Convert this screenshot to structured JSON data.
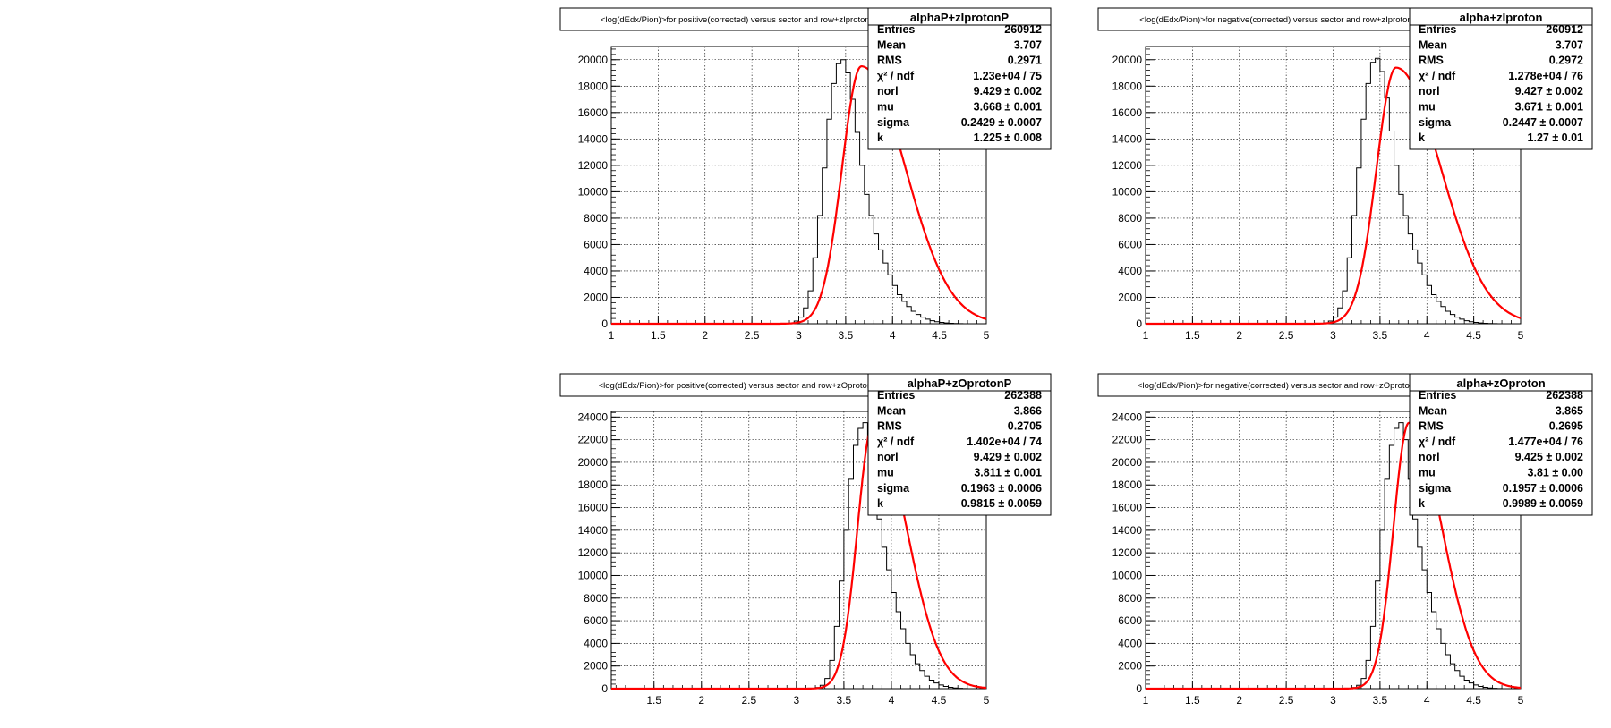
{
  "chart_data": [
    {
      "type": "bar",
      "title": "<log(dEdx/Pion)>for positive(corrected) versus sector and row+zIprotonP",
      "xlim": [
        1,
        5
      ],
      "ylim": [
        0,
        21000
      ],
      "x_ticks": [
        "1",
        "1.5",
        "2",
        "2.5",
        "3",
        "3.5",
        "4",
        "4.5",
        "5"
      ],
      "y_ticks": [
        "0",
        "2000",
        "4000",
        "6000",
        "8000",
        "10000",
        "12000",
        "14000",
        "16000",
        "18000",
        "20000"
      ],
      "grid": true,
      "histogram": {
        "x_start": 2.95,
        "bin_width": 0.05,
        "values": [
          200,
          500,
          1200,
          2500,
          5000,
          8200,
          11800,
          15500,
          18200,
          19700,
          20000,
          19000,
          17000,
          14500,
          12000,
          9800,
          8200,
          6800,
          5600,
          4600,
          3700,
          2900,
          2200,
          1700,
          1300,
          950,
          700,
          500,
          350,
          230,
          150,
          100,
          60,
          30,
          15,
          5,
          0,
          0,
          0,
          0,
          0,
          0
        ]
      },
      "fit": {
        "name": "red fit curve",
        "norl": 9.429,
        "mu": 3.668,
        "sigma": 0.2429,
        "k": 1.225,
        "peak": 19500
      },
      "stats": {
        "name": "alphaP+zIprotonP",
        "rows": [
          {
            "label": "Entries",
            "value": "260912"
          },
          {
            "label": "Mean",
            "value": "3.707"
          },
          {
            "label": "RMS",
            "value": "0.2971"
          },
          {
            "label": "χ² / ndf",
            "value": "1.23e+04 / 75"
          },
          {
            "label": "norl",
            "value": "9.429 ± 0.002"
          },
          {
            "label": "mu",
            "value": "3.668 ± 0.001"
          },
          {
            "label": "sigma",
            "value": "0.2429 ± 0.0007"
          },
          {
            "label": "k",
            "value": "1.225 ± 0.008"
          }
        ]
      }
    },
    {
      "type": "bar",
      "title": "<log(dEdx/Pion)>for negative(corrected) versus sector and row+zIproton",
      "xlim": [
        1,
        5
      ],
      "ylim": [
        0,
        21000
      ],
      "x_ticks": [
        "1",
        "1.5",
        "2",
        "2.5",
        "3",
        "3.5",
        "4",
        "4.5",
        "5"
      ],
      "y_ticks": [
        "0",
        "2000",
        "4000",
        "6000",
        "8000",
        "10000",
        "12000",
        "14000",
        "16000",
        "18000",
        "20000"
      ],
      "grid": true,
      "histogram": {
        "x_start": 2.95,
        "bin_width": 0.05,
        "values": [
          200,
          500,
          1200,
          2500,
          5000,
          8200,
          11800,
          15500,
          18200,
          19800,
          20100,
          19100,
          17100,
          14600,
          12000,
          9800,
          8200,
          6800,
          5600,
          4600,
          3700,
          2900,
          2200,
          1700,
          1300,
          950,
          700,
          500,
          350,
          230,
          150,
          100,
          60,
          30,
          15,
          5,
          0,
          0,
          0,
          0,
          0,
          0
        ]
      },
      "fit": {
        "name": "red fit curve",
        "norl": 9.427,
        "mu": 3.671,
        "sigma": 0.2447,
        "k": 1.27,
        "peak": 19400
      },
      "stats": {
        "name": "alpha+zIproton",
        "rows": [
          {
            "label": "Entries",
            "value": "260912"
          },
          {
            "label": "Mean",
            "value": "3.707"
          },
          {
            "label": "RMS",
            "value": "0.2972"
          },
          {
            "label": "χ² / ndf",
            "value": "1.278e+04 / 76"
          },
          {
            "label": "norl",
            "value": "9.427 ± 0.002"
          },
          {
            "label": "mu",
            "value": "3.671 ± 0.001"
          },
          {
            "label": "sigma",
            "value": "0.2447 ± 0.0007"
          },
          {
            "label": "k",
            "value": "1.27 ± 0.01"
          }
        ]
      }
    },
    {
      "type": "bar",
      "title": "<log(dEdx/Pion)>for positive(corrected) versus sector and row+zOprotonP",
      "xlim": [
        1.05,
        5
      ],
      "ylim": [
        0,
        24500
      ],
      "x_ticks": [
        "1.5",
        "2",
        "2.5",
        "3",
        "3.5",
        "4",
        "4.5",
        "5"
      ],
      "y_ticks": [
        "0",
        "2000",
        "4000",
        "6000",
        "8000",
        "10000",
        "12000",
        "14000",
        "16000",
        "18000",
        "20000",
        "22000",
        "24000"
      ],
      "grid": true,
      "histogram": {
        "x_start": 3.2,
        "bin_width": 0.05,
        "values": [
          100,
          300,
          900,
          2500,
          5500,
          9500,
          14000,
          18500,
          21500,
          23000,
          23500,
          22000,
          18500,
          15000,
          12500,
          10500,
          8500,
          6800,
          5300,
          4000,
          3000,
          2200,
          1600,
          1100,
          750,
          500,
          330,
          200,
          120,
          60,
          30,
          10,
          0,
          0,
          0,
          0
        ]
      },
      "fit": {
        "name": "red fit curve",
        "norl": 9.429,
        "mu": 3.811,
        "sigma": 0.1963,
        "k": 0.9815,
        "peak": 23500
      },
      "stats": {
        "name": "alphaP+zOprotonP",
        "rows": [
          {
            "label": "Entries",
            "value": "262388"
          },
          {
            "label": "Mean",
            "value": "3.866"
          },
          {
            "label": "RMS",
            "value": "0.2705"
          },
          {
            "label": "χ² / ndf",
            "value": "1.402e+04 / 74"
          },
          {
            "label": "norl",
            "value": "9.429 ± 0.002"
          },
          {
            "label": "mu",
            "value": "3.811 ± 0.001"
          },
          {
            "label": "sigma",
            "value": "0.1963 ± 0.0006"
          },
          {
            "label": "k",
            "value": "0.9815 ± 0.0059"
          }
        ]
      }
    },
    {
      "type": "bar",
      "title": "<log(dEdx/Pion)>for negative(corrected) versus sector and row+zOproton",
      "xlim": [
        1,
        5
      ],
      "ylim": [
        0,
        24500
      ],
      "x_ticks": [
        "1",
        "1.5",
        "2",
        "2.5",
        "3",
        "3.5",
        "4",
        "4.5",
        "5"
      ],
      "y_ticks": [
        "0",
        "2000",
        "4000",
        "6000",
        "8000",
        "10000",
        "12000",
        "14000",
        "16000",
        "18000",
        "20000",
        "22000",
        "24000"
      ],
      "grid": true,
      "histogram": {
        "x_start": 3.2,
        "bin_width": 0.05,
        "values": [
          100,
          300,
          900,
          2500,
          5500,
          9500,
          14000,
          18500,
          21500,
          23000,
          23500,
          22000,
          18500,
          15000,
          12500,
          10500,
          8500,
          6800,
          5300,
          4000,
          3000,
          2200,
          1600,
          1100,
          750,
          500,
          330,
          200,
          120,
          60,
          30,
          10,
          0,
          0,
          0,
          0
        ]
      },
      "fit": {
        "name": "red fit curve",
        "norl": 9.425,
        "mu": 3.81,
        "sigma": 0.1957,
        "k": 0.9989,
        "peak": 23500
      },
      "stats": {
        "name": "alpha+zOproton",
        "rows": [
          {
            "label": "Entries",
            "value": "262388"
          },
          {
            "label": "Mean",
            "value": "3.865"
          },
          {
            "label": "RMS",
            "value": "0.2695"
          },
          {
            "label": "χ² / ndf",
            "value": "1.477e+04 / 76"
          },
          {
            "label": "norl",
            "value": "9.425 ± 0.002"
          },
          {
            "label": "mu",
            "value": "3.81 ± 0.00"
          },
          {
            "label": "sigma",
            "value": "0.1957 ± 0.0006"
          },
          {
            "label": "k",
            "value": "0.9989 ± 0.0059"
          }
        ]
      }
    }
  ]
}
